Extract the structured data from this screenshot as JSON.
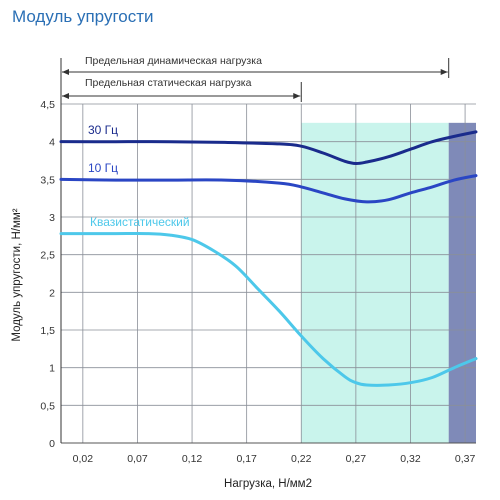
{
  "colors": {
    "title": "#2a6fb5",
    "grid": "#8a8f98",
    "highlight_static": "#c9f4ec",
    "highlight_dynamic": "#7f8ab8"
  },
  "chart_data": {
    "type": "line",
    "title": "Модуль упругости",
    "xlabel": "Нагрузка, Н/мм2",
    "ylabel": "Модуль упругости, Н/мм²",
    "x_ticks": [
      "0,02",
      "0,07",
      "0,12",
      "0,17",
      "0,22",
      "0,27",
      "0,32",
      "0,37"
    ],
    "y_ticks": [
      "0",
      "0,5",
      "1",
      "1,5",
      "2",
      "2,5",
      "3",
      "3,5",
      "4",
      "4,5"
    ],
    "xlim": [
      0,
      0.38
    ],
    "ylim": [
      0,
      4.5
    ],
    "grid": true,
    "ranges": [
      {
        "label": "Предельная динамическая нагрузка",
        "from": 0,
        "to": 0.355
      },
      {
        "label": "Предельная статическая нагрузка",
        "from": 0,
        "to": 0.22
      }
    ],
    "shaded_regions": [
      {
        "from": 0.22,
        "to": 0.355,
        "color": "#c9f4ec"
      },
      {
        "from": 0.355,
        "to": 0.38,
        "color": "#7f8ab8"
      }
    ],
    "series": [
      {
        "name": "30 Гц",
        "color": "#1a2b8c",
        "x": [
          0,
          0.05,
          0.1,
          0.15,
          0.2,
          0.22,
          0.24,
          0.26,
          0.27,
          0.28,
          0.3,
          0.32,
          0.34,
          0.36,
          0.38
        ],
        "y": [
          4.0,
          4.0,
          4.0,
          3.99,
          3.97,
          3.94,
          3.85,
          3.74,
          3.71,
          3.73,
          3.8,
          3.9,
          4.0,
          4.07,
          4.13
        ]
      },
      {
        "name": "10 Гц",
        "color": "#2a46c4",
        "x": [
          0,
          0.05,
          0.1,
          0.15,
          0.2,
          0.22,
          0.24,
          0.26,
          0.28,
          0.3,
          0.32,
          0.34,
          0.36,
          0.38
        ],
        "y": [
          3.5,
          3.49,
          3.49,
          3.49,
          3.45,
          3.4,
          3.32,
          3.24,
          3.2,
          3.23,
          3.32,
          3.4,
          3.49,
          3.55
        ]
      },
      {
        "name": "Квазистатический",
        "color": "#4dc8ea",
        "x": [
          0,
          0.02,
          0.05,
          0.08,
          0.1,
          0.12,
          0.14,
          0.16,
          0.18,
          0.2,
          0.22,
          0.24,
          0.26,
          0.27,
          0.28,
          0.3,
          0.32,
          0.34,
          0.36,
          0.38
        ],
        "y": [
          2.78,
          2.78,
          2.78,
          2.78,
          2.76,
          2.7,
          2.55,
          2.35,
          2.05,
          1.75,
          1.42,
          1.12,
          0.88,
          0.8,
          0.77,
          0.77,
          0.8,
          0.87,
          1.0,
          1.12
        ]
      }
    ]
  }
}
